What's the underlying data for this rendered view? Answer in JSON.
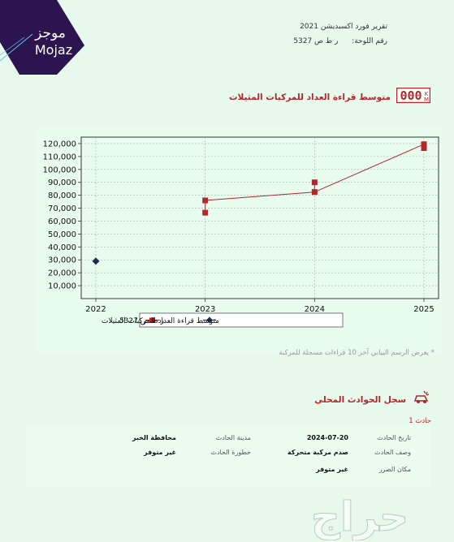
{
  "brand": {
    "arabic": "موجز",
    "latin": "Mojaz"
  },
  "header": {
    "title": "تقرير فورد اكسبديشن 2021",
    "plate_label": "رقم اللوحة:",
    "plate_value": "ر ط ص 5327"
  },
  "odometer_section": {
    "title": "متوسط قراءة العداد للمركبات المثيلات",
    "icon": "odometer-icon",
    "odo_digits": "000"
  },
  "chart_data": {
    "type": "line",
    "x_ticks": [
      "2022",
      "2023",
      "2024",
      "2025"
    ],
    "xlim": [
      2022,
      2025
    ],
    "ylim": [
      0,
      125000
    ],
    "y_ticks": [
      10000,
      20000,
      30000,
      40000,
      50000,
      60000,
      70000,
      80000,
      90000,
      100000,
      110000,
      120000
    ],
    "y_tick_labels": [
      "10,000",
      "20,000",
      "30,000",
      "40,000",
      "50,000",
      "60,000",
      "70,000",
      "80,000",
      "90,000",
      "100,000",
      "110,000",
      "120,000"
    ],
    "grid": true,
    "legend_placement": "bottom-center",
    "series": [
      {
        "name": "ر ط ص 5327",
        "color": "#b3262a",
        "marker": "square",
        "points": [
          {
            "x": 2023,
            "y": 66500
          },
          {
            "x": 2023,
            "y": 76000
          },
          {
            "x": 2024,
            "y": 90000
          },
          {
            "x": 2024,
            "y": 82500
          },
          {
            "x": 2025,
            "y": 116500
          },
          {
            "x": 2025,
            "y": 119500
          }
        ],
        "line": [
          {
            "x": 2023,
            "y": 76000
          },
          {
            "x": 2024,
            "y": 82500
          },
          {
            "x": 2025,
            "y": 119500
          }
        ]
      },
      {
        "name": "متوسط قراءة العداد للمركبات المثيلات",
        "color": "#1f2a4d",
        "marker": "diamond",
        "points": [
          {
            "x": 2022,
            "y": 29000
          }
        ]
      }
    ]
  },
  "chart_note": "* يعرض الرسم البياني آخر 10 قراءات مسجلة للمركبة",
  "accidents": {
    "title": "سجل الحوادث المحلي",
    "icon": "car-crash-icon",
    "item_label": "حادث 1",
    "fields": {
      "date_label": "تاريخ الحادث",
      "date_value": "2024-07-20",
      "city_label": "مدينة الحادث",
      "gov_value": "محافظة الخبر",
      "desc_label": "وصف الحادث",
      "desc_value": "صدم مركبة متحركة",
      "severity_label": "خطورة الحادث",
      "severity_value": "غير متوفر",
      "damage_label": "مكان الضرر",
      "damage_value": "غير متوفر"
    }
  },
  "watermark": {
    "text": "حراج",
    "icon": "haraj-watermark"
  }
}
